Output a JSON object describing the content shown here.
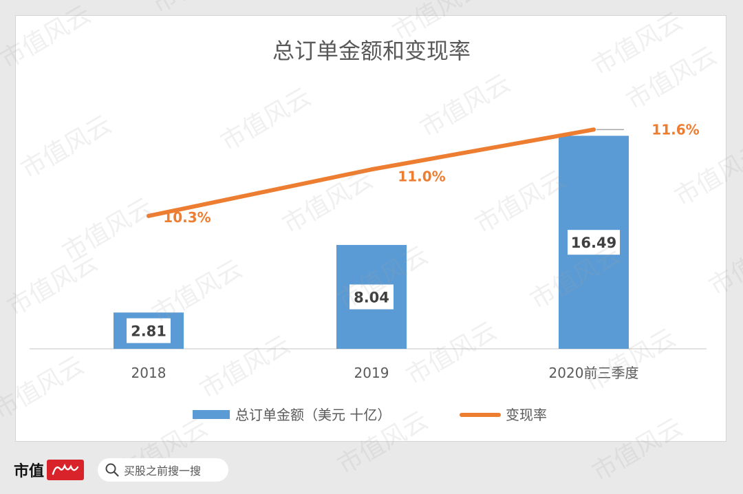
{
  "chart_data": {
    "type": "bar",
    "title": "总订单金额和变现率",
    "categories": [
      "2018",
      "2019",
      "2020前三季度"
    ],
    "series": [
      {
        "name": "总订单金额（美元 十亿）",
        "type": "bar",
        "values": [
          2.81,
          8.04,
          16.49
        ],
        "labels": [
          "2.81",
          "8.04",
          "16.49"
        ],
        "color": "#5b9bd5"
      },
      {
        "name": "变现率",
        "type": "line",
        "values": [
          10.3,
          11.0,
          11.6
        ],
        "labels": [
          "10.3%",
          "11.0%",
          "11.6%"
        ],
        "color": "#ed7d31"
      }
    ],
    "ylim": [
      0,
      18
    ],
    "y2lim": [
      8.3,
      11.8
    ],
    "grid": false,
    "legend": "bottom"
  },
  "watermark": "市值风云",
  "footer": {
    "brand": "市值",
    "search_placeholder": "买股之前搜一搜"
  }
}
